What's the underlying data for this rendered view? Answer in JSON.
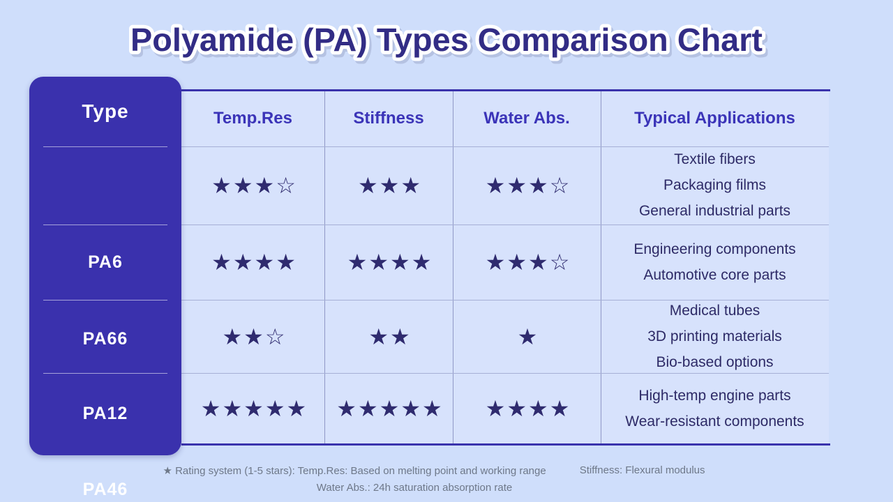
{
  "title": {
    "text": "Polyamide (PA) Types Comparison Chart"
  },
  "table": {
    "corner_header": "Type",
    "columns": [
      "Temp.Res",
      "Stiffness",
      "Water Abs.",
      "Typical Applications"
    ],
    "rows": [
      {
        "type": "PA6",
        "temp_res": "★★★☆",
        "stiffness": "★★★",
        "water_abs": "★★★☆",
        "applications": [
          "Textile fibers",
          "Packaging films",
          "General industrial parts"
        ]
      },
      {
        "type": "PA66",
        "temp_res": "★★★★",
        "stiffness": "★★★★",
        "water_abs": "★★★☆",
        "applications": [
          "Engineering components",
          "Automotive core parts"
        ]
      },
      {
        "type": "PA12",
        "temp_res": "★★☆",
        "stiffness": "★★",
        "water_abs": "★",
        "applications": [
          "Medical tubes",
          "3D printing materials",
          "Bio-based options"
        ]
      },
      {
        "type": "PA46",
        "temp_res": "★★★★★",
        "stiffness": "★★★★★",
        "water_abs": "★★★★",
        "applications": [
          "High-temp engine parts",
          "Wear-resistant components"
        ]
      }
    ]
  },
  "footer": {
    "line1_left": "★ Rating system (1-5 stars): Temp.Res: Based on melting point and working range",
    "line1_right": "Stiffness: Flexural modulus",
    "line2": "Water Abs.: 24h saturation absorption rate"
  },
  "colors": {
    "page_bg": "#cfdefb",
    "table_bg": "#d7e2fc",
    "panel": "#3a31ad",
    "rule": "#3a33ac",
    "header_text": "#3b34b8",
    "star": "#2f2b6f",
    "body_text": "#2d2a66",
    "title_fill": "#322c85",
    "title_outline": "#ffffff",
    "footer_text": "#6e7889"
  },
  "chart_data": {
    "type": "table",
    "title": "Polyamide (PA) Types Comparison Chart",
    "rating_scale": "1-5 stars",
    "row_labels": [
      "PA6",
      "PA66",
      "PA12",
      "PA46"
    ],
    "columns": [
      "Temp.Res",
      "Stiffness",
      "Water Abs.",
      "Typical Applications"
    ],
    "series": [
      {
        "name": "Temp.Res",
        "filled_stars": [
          3,
          4,
          2,
          5
        ],
        "outline_stars": [
          1,
          0,
          1,
          0
        ]
      },
      {
        "name": "Stiffness",
        "filled_stars": [
          3,
          4,
          2,
          5
        ],
        "outline_stars": [
          0,
          0,
          0,
          0
        ]
      },
      {
        "name": "Water Abs.",
        "filled_stars": [
          3,
          3,
          1,
          4
        ],
        "outline_stars": [
          1,
          1,
          0,
          0
        ]
      }
    ],
    "applications": [
      [
        "Textile fibers",
        "Packaging films",
        "General industrial parts"
      ],
      [
        "Engineering components",
        "Automotive core parts"
      ],
      [
        "Medical tubes",
        "3D printing materials",
        "Bio-based options"
      ],
      [
        "High-temp engine parts",
        "Wear-resistant components"
      ]
    ],
    "legend_notes": [
      "Temp.Res: Based on melting point and working range",
      "Stiffness: Flexural modulus",
      "Water Abs.: 24h saturation absorption rate"
    ]
  }
}
